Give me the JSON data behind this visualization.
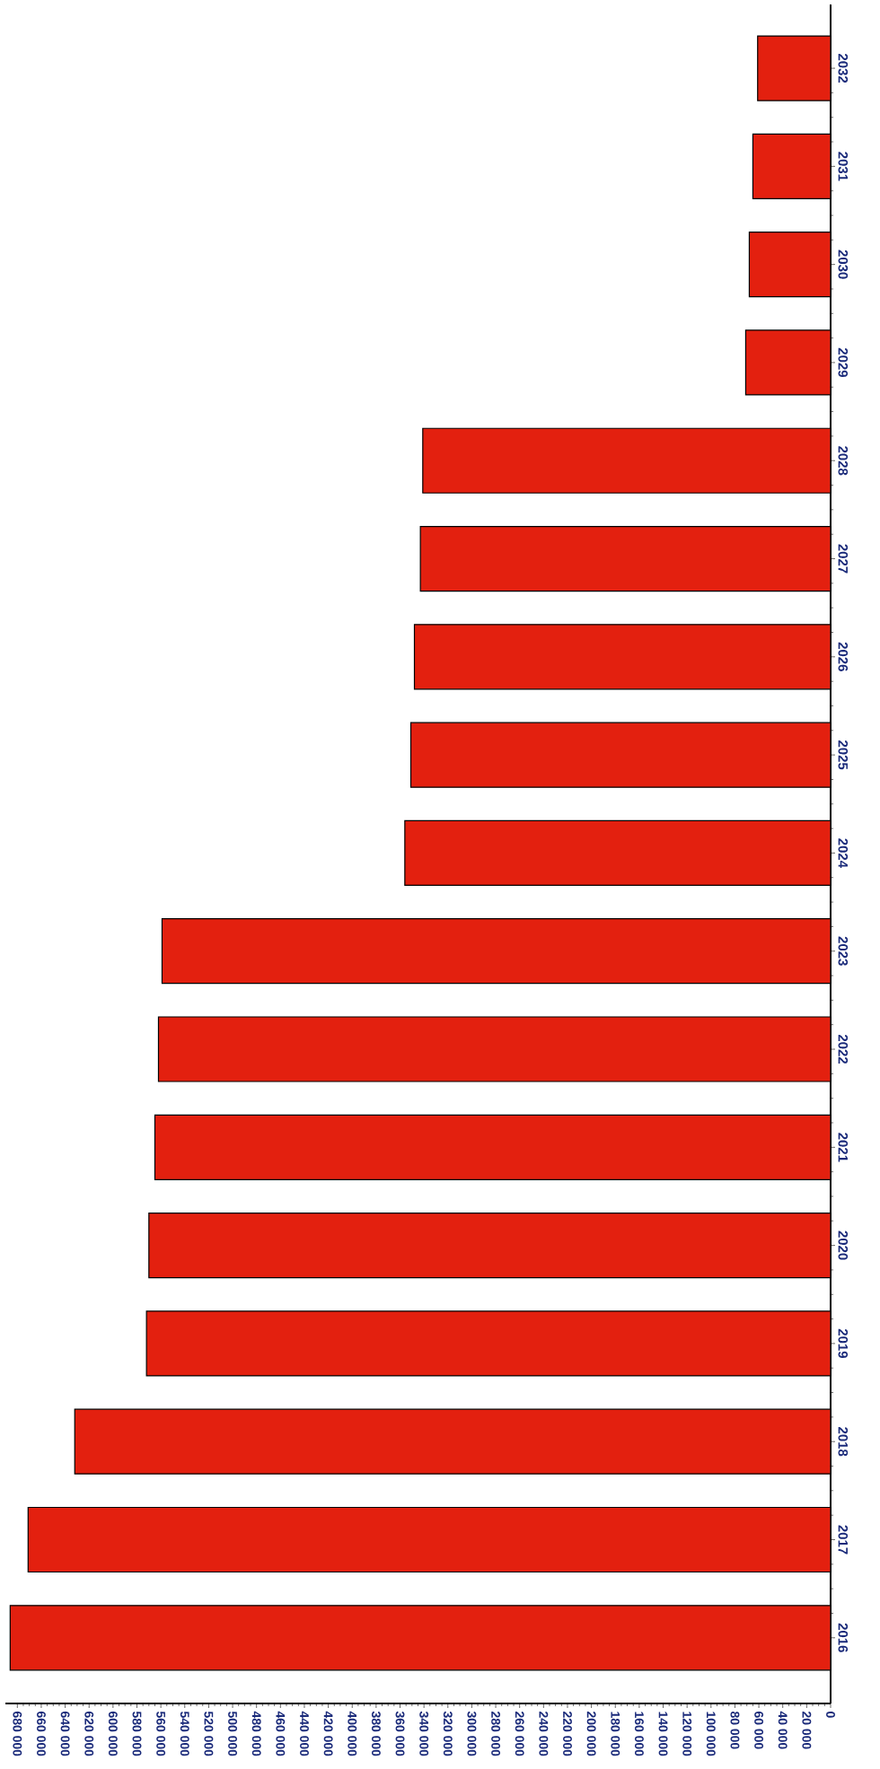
{
  "chart_data": {
    "type": "bar",
    "orientation": "horizontal",
    "categories": [
      "2032",
      "2031",
      "2030",
      "2029",
      "2028",
      "2027",
      "2026",
      "2025",
      "2024",
      "2023",
      "2022",
      "2021",
      "2020",
      "2019",
      "2018",
      "2017",
      "2016"
    ],
    "values": [
      61000,
      65000,
      68000,
      71000,
      341000,
      343000,
      348000,
      351000,
      356000,
      559000,
      562000,
      565000,
      570000,
      572000,
      632000,
      671000,
      686000
    ],
    "color": "#e3200f",
    "xlim": [
      690000,
      0
    ],
    "xticks": [
      0,
      {
        "value": 20000,
        "label": "20 000"
      },
      {
        "value": 40000,
        "label": "40 000"
      },
      {
        "value": 60000,
        "label": "60 000"
      },
      {
        "value": 80000,
        "label": "80 000"
      },
      {
        "value": 100000,
        "label": "100 000"
      },
      {
        "value": 120000,
        "label": "120 000"
      },
      {
        "value": 140000,
        "label": "140 000"
      },
      {
        "value": 160000,
        "label": "160 000"
      },
      {
        "value": 180000,
        "label": "180 000"
      },
      {
        "value": 200000,
        "label": "200 000"
      },
      {
        "value": 220000,
        "label": "220 000"
      },
      {
        "value": 240000,
        "label": "240 000"
      },
      {
        "value": 260000,
        "label": "260 000"
      },
      {
        "value": 280000,
        "label": "280 000"
      },
      {
        "value": 300000,
        "label": "300 000"
      },
      {
        "value": 320000,
        "label": "320 000"
      },
      {
        "value": 340000,
        "label": "340 000"
      },
      {
        "value": 360000,
        "label": "360 000"
      },
      {
        "value": 380000,
        "label": "380 000"
      },
      {
        "value": 400000,
        "label": "400 000"
      },
      {
        "value": 420000,
        "label": "420 000"
      },
      {
        "value": 440000,
        "label": "440 000"
      },
      {
        "value": 460000,
        "label": "460 000"
      },
      {
        "value": 480000,
        "label": "480 000"
      },
      {
        "value": 500000,
        "label": "500 000"
      },
      {
        "value": 520000,
        "label": "520 000"
      },
      {
        "value": 540000,
        "label": "540 000"
      },
      {
        "value": 560000,
        "label": "560 000"
      },
      {
        "value": 580000,
        "label": "580 000"
      },
      {
        "value": 600000,
        "label": "600 000"
      },
      {
        "value": 620000,
        "label": "620 000"
      },
      {
        "value": 640000,
        "label": "640 000"
      },
      {
        "value": 660000,
        "label": "660 000"
      },
      {
        "value": 680000,
        "label": "680 000"
      }
    ],
    "grid": false
  }
}
